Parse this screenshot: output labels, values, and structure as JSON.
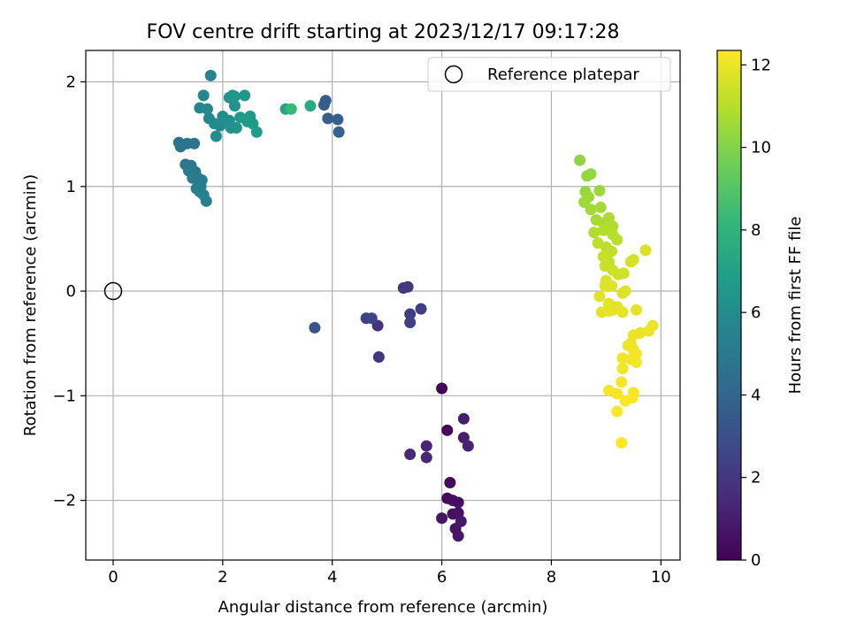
{
  "chart_data": {
    "type": "scatter",
    "title": "FOV centre drift starting at 2023/12/17 09:17:28",
    "xlabel": "Angular distance from reference (arcmin)",
    "ylabel": "Rotation from reference (arcmin)",
    "xlim": [
      -0.5,
      10.35
    ],
    "ylim": [
      -2.57,
      2.3
    ],
    "xticks": [
      0,
      2,
      4,
      6,
      8,
      10
    ],
    "yticks": [
      -2,
      -1,
      0,
      1,
      2
    ],
    "grid": true,
    "legend": {
      "placement": "top-right",
      "entries": [
        "Reference platepar"
      ]
    },
    "reference_point": {
      "x": 0,
      "y": 0,
      "label": "Reference platepar"
    },
    "colorbar": {
      "label": "Hours from first FF file",
      "colormap": "viridis",
      "range": [
        0,
        12.35
      ],
      "ticks": [
        0,
        2,
        4,
        6,
        8,
        10,
        12
      ]
    },
    "colormap_stops": [
      "#440154",
      "#482878",
      "#3e4a89",
      "#31688e",
      "#26828e",
      "#1f9e89",
      "#35b779",
      "#6ece58",
      "#b5de2b",
      "#fde725"
    ],
    "points": [
      {
        "x": 6.0,
        "y": -0.93,
        "h": 0.1
      },
      {
        "x": 6.1,
        "y": -1.33,
        "h": 0.2
      },
      {
        "x": 6.15,
        "y": -1.83,
        "h": 0.3
      },
      {
        "x": 6.1,
        "y": -1.98,
        "h": 0.4
      },
      {
        "x": 6.2,
        "y": -2.0,
        "h": 0.45
      },
      {
        "x": 6.3,
        "y": -2.02,
        "h": 0.5
      },
      {
        "x": 6.2,
        "y": -2.13,
        "h": 0.55
      },
      {
        "x": 6.3,
        "y": -2.12,
        "h": 0.6
      },
      {
        "x": 6.0,
        "y": -2.17,
        "h": 0.65
      },
      {
        "x": 6.25,
        "y": -2.27,
        "h": 0.7
      },
      {
        "x": 6.3,
        "y": -2.34,
        "h": 0.75
      },
      {
        "x": 6.35,
        "y": -2.2,
        "h": 0.8
      },
      {
        "x": 6.4,
        "y": -1.22,
        "h": 1.0
      },
      {
        "x": 6.4,
        "y": -1.4,
        "h": 1.1
      },
      {
        "x": 6.48,
        "y": -1.48,
        "h": 1.2
      },
      {
        "x": 5.72,
        "y": -1.48,
        "h": 1.3
      },
      {
        "x": 5.72,
        "y": -1.59,
        "h": 1.35
      },
      {
        "x": 5.42,
        "y": -1.56,
        "h": 1.4
      },
      {
        "x": 4.83,
        "y": -0.33,
        "h": 1.8
      },
      {
        "x": 4.85,
        "y": -0.63,
        "h": 1.9
      },
      {
        "x": 5.3,
        "y": 0.03,
        "h": 2.1
      },
      {
        "x": 5.38,
        "y": 0.04,
        "h": 2.15
      },
      {
        "x": 5.42,
        "y": -0.22,
        "h": 2.2
      },
      {
        "x": 5.42,
        "y": -0.3,
        "h": 2.25
      },
      {
        "x": 5.62,
        "y": -0.17,
        "h": 2.3
      },
      {
        "x": 4.62,
        "y": -0.26,
        "h": 2.4
      },
      {
        "x": 4.72,
        "y": -0.26,
        "h": 2.5
      },
      {
        "x": 3.68,
        "y": -0.35,
        "h": 3.2
      },
      {
        "x": 3.85,
        "y": 1.78,
        "h": 3.6
      },
      {
        "x": 3.88,
        "y": 1.82,
        "h": 3.65
      },
      {
        "x": 3.92,
        "y": 1.65,
        "h": 3.7
      },
      {
        "x": 4.1,
        "y": 1.64,
        "h": 3.75
      },
      {
        "x": 4.12,
        "y": 1.52,
        "h": 3.8
      },
      {
        "x": 1.2,
        "y": 1.42,
        "h": 4.6
      },
      {
        "x": 1.35,
        "y": 1.41,
        "h": 4.7
      },
      {
        "x": 1.48,
        "y": 1.41,
        "h": 4.75
      },
      {
        "x": 1.23,
        "y": 1.38,
        "h": 4.8
      },
      {
        "x": 1.32,
        "y": 1.21,
        "h": 4.9
      },
      {
        "x": 1.42,
        "y": 1.2,
        "h": 4.95
      },
      {
        "x": 1.38,
        "y": 1.15,
        "h": 5.0
      },
      {
        "x": 1.5,
        "y": 1.14,
        "h": 5.05
      },
      {
        "x": 1.55,
        "y": 1.08,
        "h": 5.1
      },
      {
        "x": 1.45,
        "y": 1.08,
        "h": 5.15
      },
      {
        "x": 1.62,
        "y": 1.06,
        "h": 5.2
      },
      {
        "x": 1.6,
        "y": 1.0,
        "h": 5.25
      },
      {
        "x": 1.52,
        "y": 0.98,
        "h": 5.3
      },
      {
        "x": 1.58,
        "y": 0.95,
        "h": 5.35
      },
      {
        "x": 1.65,
        "y": 0.92,
        "h": 5.4
      },
      {
        "x": 1.7,
        "y": 0.86,
        "h": 5.45
      },
      {
        "x": 1.78,
        "y": 2.06,
        "h": 5.6
      },
      {
        "x": 1.65,
        "y": 1.87,
        "h": 5.7
      },
      {
        "x": 1.58,
        "y": 1.75,
        "h": 5.75
      },
      {
        "x": 1.72,
        "y": 1.74,
        "h": 5.8
      },
      {
        "x": 1.75,
        "y": 1.65,
        "h": 5.85
      },
      {
        "x": 1.85,
        "y": 1.6,
        "h": 5.9
      },
      {
        "x": 1.95,
        "y": 1.58,
        "h": 5.95
      },
      {
        "x": 1.88,
        "y": 1.48,
        "h": 6.0
      },
      {
        "x": 2.0,
        "y": 1.67,
        "h": 6.05
      },
      {
        "x": 2.05,
        "y": 1.62,
        "h": 6.1
      },
      {
        "x": 2.12,
        "y": 1.63,
        "h": 6.15
      },
      {
        "x": 2.15,
        "y": 1.56,
        "h": 6.2
      },
      {
        "x": 2.22,
        "y": 1.77,
        "h": 6.25
      },
      {
        "x": 2.25,
        "y": 1.56,
        "h": 6.3
      },
      {
        "x": 2.12,
        "y": 1.85,
        "h": 6.35
      },
      {
        "x": 2.18,
        "y": 1.87,
        "h": 6.4
      },
      {
        "x": 2.22,
        "y": 1.86,
        "h": 6.45
      },
      {
        "x": 2.4,
        "y": 1.87,
        "h": 6.5
      },
      {
        "x": 2.32,
        "y": 1.66,
        "h": 6.55
      },
      {
        "x": 2.45,
        "y": 1.62,
        "h": 6.6
      },
      {
        "x": 2.5,
        "y": 1.67,
        "h": 6.65
      },
      {
        "x": 2.55,
        "y": 1.6,
        "h": 6.7
      },
      {
        "x": 2.62,
        "y": 1.52,
        "h": 6.8
      },
      {
        "x": 3.15,
        "y": 1.74,
        "h": 7.2
      },
      {
        "x": 3.6,
        "y": 1.77,
        "h": 7.5
      },
      {
        "x": 3.25,
        "y": 1.74,
        "h": 8.3
      },
      {
        "x": 8.52,
        "y": 1.25,
        "h": 10.2
      },
      {
        "x": 8.65,
        "y": 1.1,
        "h": 10.3
      },
      {
        "x": 8.72,
        "y": 1.12,
        "h": 10.35
      },
      {
        "x": 8.62,
        "y": 0.95,
        "h": 10.4
      },
      {
        "x": 8.68,
        "y": 0.9,
        "h": 10.45
      },
      {
        "x": 8.88,
        "y": 0.96,
        "h": 10.5
      },
      {
        "x": 8.6,
        "y": 0.85,
        "h": 10.55
      },
      {
        "x": 8.72,
        "y": 0.78,
        "h": 10.6
      },
      {
        "x": 8.9,
        "y": 0.8,
        "h": 10.65
      },
      {
        "x": 8.82,
        "y": 0.68,
        "h": 10.7
      },
      {
        "x": 8.95,
        "y": 0.65,
        "h": 10.75
      },
      {
        "x": 9.05,
        "y": 0.7,
        "h": 10.8
      },
      {
        "x": 9.12,
        "y": 0.62,
        "h": 10.85
      },
      {
        "x": 8.78,
        "y": 0.56,
        "h": 10.9
      },
      {
        "x": 8.95,
        "y": 0.58,
        "h": 10.95
      },
      {
        "x": 9.12,
        "y": 0.54,
        "h": 11.0
      },
      {
        "x": 9.2,
        "y": 0.49,
        "h": 11.05
      },
      {
        "x": 8.85,
        "y": 0.46,
        "h": 11.1
      },
      {
        "x": 9.0,
        "y": 0.42,
        "h": 11.15
      },
      {
        "x": 9.1,
        "y": 0.38,
        "h": 11.2
      },
      {
        "x": 8.95,
        "y": 0.33,
        "h": 11.25
      },
      {
        "x": 9.05,
        "y": 0.28,
        "h": 11.3
      },
      {
        "x": 8.98,
        "y": 0.24,
        "h": 11.35
      },
      {
        "x": 9.12,
        "y": 0.2,
        "h": 11.4
      },
      {
        "x": 9.22,
        "y": 0.16,
        "h": 11.45
      },
      {
        "x": 9.32,
        "y": 0.17,
        "h": 11.5
      },
      {
        "x": 9.45,
        "y": 0.28,
        "h": 11.55
      },
      {
        "x": 9.5,
        "y": 0.3,
        "h": 11.6
      },
      {
        "x": 9.72,
        "y": 0.39,
        "h": 11.65
      },
      {
        "x": 9.0,
        "y": 0.1,
        "h": 11.7
      },
      {
        "x": 9.1,
        "y": 0.05,
        "h": 11.72
      },
      {
        "x": 8.98,
        "y": 0.05,
        "h": 11.74
      },
      {
        "x": 9.35,
        "y": 0.0,
        "h": 11.76
      },
      {
        "x": 9.3,
        "y": -0.02,
        "h": 11.78
      },
      {
        "x": 8.88,
        "y": -0.05,
        "h": 11.8
      },
      {
        "x": 9.05,
        "y": -0.12,
        "h": 11.82
      },
      {
        "x": 9.2,
        "y": -0.15,
        "h": 11.84
      },
      {
        "x": 9.12,
        "y": -0.18,
        "h": 11.86
      },
      {
        "x": 8.92,
        "y": -0.2,
        "h": 11.88
      },
      {
        "x": 9.05,
        "y": -0.19,
        "h": 11.9
      },
      {
        "x": 9.3,
        "y": -0.2,
        "h": 11.92
      },
      {
        "x": 9.55,
        "y": -0.18,
        "h": 11.94
      },
      {
        "x": 9.85,
        "y": -0.33,
        "h": 11.96
      },
      {
        "x": 9.78,
        "y": -0.38,
        "h": 11.98
      },
      {
        "x": 9.62,
        "y": -0.4,
        "h": 12.0
      },
      {
        "x": 9.5,
        "y": -0.42,
        "h": 12.02
      },
      {
        "x": 9.45,
        "y": -0.5,
        "h": 12.04
      },
      {
        "x": 9.4,
        "y": -0.52,
        "h": 12.06
      },
      {
        "x": 9.5,
        "y": -0.56,
        "h": 12.08
      },
      {
        "x": 9.55,
        "y": -0.6,
        "h": 12.1
      },
      {
        "x": 9.3,
        "y": -0.64,
        "h": 12.12
      },
      {
        "x": 9.45,
        "y": -0.65,
        "h": 12.14
      },
      {
        "x": 9.55,
        "y": -0.68,
        "h": 12.16
      },
      {
        "x": 9.3,
        "y": -0.74,
        "h": 12.18
      },
      {
        "x": 9.05,
        "y": -0.95,
        "h": 12.2
      },
      {
        "x": 9.2,
        "y": -0.98,
        "h": 12.22
      },
      {
        "x": 9.28,
        "y": -0.87,
        "h": 12.24
      },
      {
        "x": 9.5,
        "y": -0.97,
        "h": 12.26
      },
      {
        "x": 9.48,
        "y": -1.02,
        "h": 12.28
      },
      {
        "x": 9.35,
        "y": -1.05,
        "h": 12.3
      },
      {
        "x": 9.2,
        "y": -1.15,
        "h": 12.32
      },
      {
        "x": 9.28,
        "y": -1.45,
        "h": 12.34
      }
    ]
  }
}
